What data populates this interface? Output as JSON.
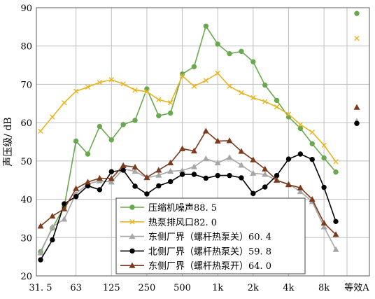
{
  "chart_data": {
    "type": "line",
    "title": "",
    "xlabel": "",
    "ylabel": "声压级/ dB",
    "ylim": [
      20,
      90
    ],
    "yticks": [
      20,
      30,
      40,
      50,
      60,
      70,
      80,
      90
    ],
    "grid": true,
    "legend_position": "bottom-left",
    "x_bands": [
      "31.5",
      "40",
      "50",
      "63",
      "80",
      "100",
      "125",
      "160",
      "200",
      "250",
      "315",
      "400",
      "500",
      "630",
      "800",
      "1k",
      "1.25k",
      "1.6k",
      "2k",
      "2.5k",
      "3.15k",
      "4k",
      "5k",
      "6.3k",
      "8k",
      "10k"
    ],
    "x_tick_labels": [
      "31. 5",
      "63",
      "125",
      "250",
      "500",
      "1k",
      "2k",
      "4k",
      "8k",
      "等效A"
    ],
    "series": [
      {
        "name": "压缩机噪声88. 5",
        "color": "#6aa84f",
        "marker": "circle-filled",
        "values": [
          26.3,
          32.5,
          38.0,
          55.2,
          51.8,
          59.0,
          55.5,
          59.5,
          60.6,
          68.8,
          61.8,
          62.5,
          72.7,
          74.6,
          85.2,
          80.5,
          78.0,
          78.6,
          75.9,
          69.8,
          65.8,
          61.5,
          58.5,
          54.5,
          50.8,
          47.1
        ],
        "total": 88.5
      },
      {
        "name": "热泵排风口82. 0",
        "color": "#e8b420",
        "marker": "x",
        "values": [
          57.8,
          61.5,
          65.2,
          68.2,
          69.3,
          70.5,
          71.2,
          70.1,
          68.5,
          68.1,
          66.0,
          65.2,
          72.2,
          69.5,
          71.0,
          72.9,
          69.5,
          67.8,
          66.5,
          65.5,
          64.1,
          62.2,
          59.5,
          57.5,
          54.1,
          49.8
        ],
        "total": 82.0
      },
      {
        "name": "东侧厂界（螺杆热泵关）60. 4",
        "color": "#a6a6a6",
        "marker": "triangle",
        "values": [
          26.0,
          32.8,
          34.8,
          41.5,
          44.0,
          44.8,
          44.5,
          47.9,
          47.3,
          45.6,
          46.3,
          47.3,
          47.5,
          48.5,
          50.6,
          49.5,
          50.9,
          48.9,
          46.8,
          46.5,
          44.9,
          44.0,
          42.0,
          39.4,
          32.8,
          26.9
        ],
        "total": 60.4
      },
      {
        "name": "北侧厂界（螺杆热泵关）59. 8",
        "color": "#000000",
        "marker": "circle-filled",
        "values": [
          24.2,
          29.4,
          38.8,
          40.7,
          43.5,
          42.5,
          47.2,
          47.6,
          43.4,
          41.4,
          43.5,
          44.6,
          46.5,
          46.5,
          45.5,
          46.2,
          46.2,
          45.6,
          41.5,
          43.2,
          46.2,
          50.5,
          51.8,
          50.4,
          43.1,
          34.2
        ],
        "total": 59.8
      },
      {
        "name": "东侧厂界（螺杆热泵开）64. 0",
        "color": "#7b3a1e",
        "marker": "triangle-filled",
        "values": [
          33.0,
          35.6,
          37.5,
          42.8,
          44.5,
          45.5,
          45.4,
          48.8,
          48.4,
          45.7,
          47.6,
          49.5,
          53.2,
          52.6,
          57.8,
          55.2,
          55.3,
          52.5,
          50.3,
          47.9,
          45.0,
          43.8,
          43.0,
          40.0,
          33.8,
          30.8
        ],
        "total": 64.0
      }
    ]
  }
}
